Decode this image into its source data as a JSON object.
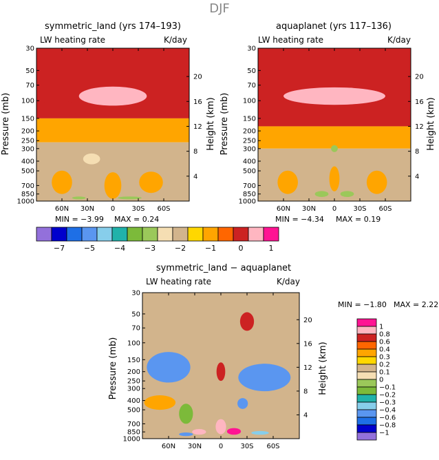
{
  "page_title": "DJF",
  "chart_data": [
    {
      "type": "heatmap",
      "title": "symmetric_land (yrs 174–193)",
      "subtitle_left": "LW heating rate",
      "subtitle_right": "K/day",
      "ylabel_left": "Pressure (mb)",
      "ylabel_right": "Height (km)",
      "min_text": "MIN = −3.99",
      "max_text": "MAX = 0.24",
      "x_ticks": [
        "60N",
        "30N",
        "0",
        "30S",
        "60S"
      ],
      "x_values": [
        60,
        30,
        0,
        -30,
        -60
      ],
      "x_range": [
        90,
        -90
      ],
      "pressure_ticks": [
        "30",
        "50",
        "70",
        "100",
        "150",
        "200",
        "250",
        "300",
        "400",
        "500",
        "700",
        "850",
        "1000"
      ],
      "pressure_values": [
        30,
        50,
        70,
        100,
        150,
        200,
        250,
        300,
        400,
        500,
        700,
        850,
        1000
      ],
      "height_ticks": [
        "20",
        "16",
        "12",
        "8",
        "4"
      ],
      "height_values": [
        20,
        16,
        12,
        8,
        4
      ],
      "bands": [
        {
          "p_top": 30,
          "p_bot": 150,
          "level": 0
        },
        {
          "p_top": 150,
          "p_bot": 260,
          "level": -1
        },
        {
          "p_top": 260,
          "p_bot": 1000,
          "level": -2
        }
      ],
      "blobs": [
        {
          "lat": 0,
          "p": 90,
          "dlat": 40,
          "dp": 22,
          "level": 0.5
        },
        {
          "lat": 65,
          "p": 120,
          "dlat": 25,
          "dp": 25,
          "level": 0
        },
        {
          "lat": 60,
          "p": 650,
          "dlat": 12,
          "dp": 200,
          "level": -1
        },
        {
          "lat": 0,
          "p": 700,
          "dlat": 10,
          "dp": 250,
          "level": -1
        },
        {
          "lat": -45,
          "p": 650,
          "dlat": 14,
          "dp": 180,
          "level": -1
        },
        {
          "lat": 25,
          "p": 380,
          "dlat": 10,
          "dp": 50,
          "level": -2.5
        },
        {
          "lat": -20,
          "p": 930,
          "dlat": 14,
          "dp": 30,
          "level": -3
        },
        {
          "lat": 40,
          "p": 930,
          "dlat": 8,
          "dp": 20,
          "level": -3
        }
      ]
    },
    {
      "type": "heatmap",
      "title": "aquaplanet (yrs 117–136)",
      "subtitle_left": "LW heating rate",
      "subtitle_right": "K/day",
      "ylabel_left": "Pressure (mb)",
      "ylabel_right": "Height (km)",
      "min_text": "MIN = −4.34",
      "max_text": "MAX = 0.19",
      "x_ticks": [
        "60N",
        "30N",
        "0",
        "30S",
        "60S"
      ],
      "x_values": [
        60,
        30,
        0,
        -30,
        -60
      ],
      "x_range": [
        90,
        -90
      ],
      "pressure_ticks": [
        "30",
        "50",
        "70",
        "100",
        "150",
        "200",
        "250",
        "300",
        "400",
        "500",
        "700",
        "850",
        "1000"
      ],
      "pressure_values": [
        30,
        50,
        70,
        100,
        150,
        200,
        250,
        300,
        400,
        500,
        700,
        850,
        1000
      ],
      "height_ticks": [
        "20",
        "16",
        "12",
        "8",
        "4"
      ],
      "height_values": [
        20,
        16,
        12,
        8,
        4
      ],
      "bands": [
        {
          "p_top": 30,
          "p_bot": 180,
          "level": 0.3
        },
        {
          "p_top": 180,
          "p_bot": 300,
          "level": -1
        },
        {
          "p_top": 300,
          "p_bot": 1000,
          "level": -2
        }
      ],
      "blobs": [
        {
          "lat": 0,
          "p": 90,
          "dlat": 60,
          "dp": 20,
          "level": 0.5
        },
        {
          "lat": 55,
          "p": 650,
          "dlat": 12,
          "dp": 200,
          "level": -1
        },
        {
          "lat": 0,
          "p": 600,
          "dlat": 6,
          "dp": 200,
          "level": -1
        },
        {
          "lat": -50,
          "p": 650,
          "dlat": 12,
          "dp": 200,
          "level": -1
        },
        {
          "lat": 15,
          "p": 850,
          "dlat": 8,
          "dp": 60,
          "level": -3
        },
        {
          "lat": -15,
          "p": 850,
          "dlat": 8,
          "dp": 60,
          "level": -3
        },
        {
          "lat": 0,
          "p": 300,
          "dlat": 4,
          "dp": 25,
          "level": -3
        }
      ]
    },
    {
      "type": "heatmap",
      "title": "symmetric_land − aquaplanet",
      "subtitle_left": "LW heating rate",
      "subtitle_right": "K/day",
      "ylabel_left": "Pressure (mb)",
      "ylabel_right": "Height (km)",
      "min_text": "MIN = −1.80",
      "max_text": "MAX = 2.22",
      "x_ticks": [
        "60N",
        "30N",
        "0",
        "30S",
        "60S"
      ],
      "x_values": [
        60,
        30,
        0,
        -30,
        -60
      ],
      "x_range": [
        90,
        -90
      ],
      "pressure_ticks": [
        "30",
        "50",
        "70",
        "100",
        "150",
        "200",
        "250",
        "300",
        "400",
        "500",
        "700",
        "850",
        "1000"
      ],
      "pressure_values": [
        30,
        50,
        70,
        100,
        150,
        200,
        250,
        300,
        400,
        500,
        700,
        850,
        1000
      ],
      "height_ticks": [
        "20",
        "16",
        "12",
        "8",
        "4"
      ],
      "height_values": [
        20,
        16,
        12,
        8,
        4
      ],
      "bands": [
        {
          "p_top": 30,
          "p_bot": 1000,
          "level": 0.1
        }
      ],
      "blobs": [
        {
          "lat": 60,
          "p": 180,
          "dlat": 25,
          "dp": 80,
          "level": -0.6
        },
        {
          "lat": -50,
          "p": 230,
          "dlat": 30,
          "dp": 90,
          "level": -0.6
        },
        {
          "lat": 0,
          "p": 200,
          "dlat": 5,
          "dp": 50,
          "level": 0.6
        },
        {
          "lat": 70,
          "p": 420,
          "dlat": 18,
          "dp": 80,
          "level": 0.3
        },
        {
          "lat": 40,
          "p": 550,
          "dlat": 8,
          "dp": 150,
          "level": -0.2
        },
        {
          "lat": -25,
          "p": 430,
          "dlat": 6,
          "dp": 60,
          "level": -0.6
        },
        {
          "lat": 0,
          "p": 750,
          "dlat": 6,
          "dp": 150,
          "level": 0.8
        },
        {
          "lat": 25,
          "p": 850,
          "dlat": 8,
          "dp": 60,
          "level": 0.8
        },
        {
          "lat": -15,
          "p": 840,
          "dlat": 8,
          "dp": 70,
          "level": 1
        },
        {
          "lat": 40,
          "p": 900,
          "dlat": 8,
          "dp": 40,
          "level": -0.6
        },
        {
          "lat": -45,
          "p": 870,
          "dlat": 10,
          "dp": 40,
          "level": -0.4
        },
        {
          "lat": -30,
          "p": 60,
          "dlat": 8,
          "dp": 15,
          "level": 0.6
        }
      ]
    }
  ],
  "colorbar_top": {
    "labels": [
      "−7",
      "−5",
      "−4",
      "−3",
      "−2",
      "−1",
      "0",
      "1"
    ],
    "levels": [
      -7,
      -5,
      -4,
      -3,
      -2,
      -1,
      0,
      1
    ],
    "colors": [
      "#9370db",
      "#0000cd",
      "#1e6fe6",
      "#5a96f0",
      "#87ceeb",
      "#20b2aa",
      "#7cba3a",
      "#9bc85a",
      "#f5deb3",
      "#d2b48c",
      "#ffd700",
      "#ffa500",
      "#ff6600",
      "#cc2222",
      "#ffb6c1",
      "#ff1493"
    ]
  },
  "colorbar_diff": {
    "labels": [
      "1",
      "0.8",
      "0.6",
      "0.4",
      "0.3",
      "0.2",
      "0.1",
      "0",
      "−0.1",
      "−0.2",
      "−0.3",
      "−0.4",
      "−0.6",
      "−0.8",
      "−1"
    ],
    "levels": [
      1,
      0.8,
      0.6,
      0.4,
      0.3,
      0.2,
      0.1,
      0,
      -0.1,
      -0.2,
      -0.3,
      -0.4,
      -0.6,
      -0.8,
      -1
    ],
    "colors": [
      "#ff1493",
      "#ffb6c1",
      "#cc2222",
      "#ff6600",
      "#ffa500",
      "#ffd700",
      "#d2b48c",
      "#f5deb3",
      "#9bc85a",
      "#7cba3a",
      "#20b2aa",
      "#87ceeb",
      "#5a96f0",
      "#1e6fe6",
      "#0000cd",
      "#9370db"
    ]
  }
}
